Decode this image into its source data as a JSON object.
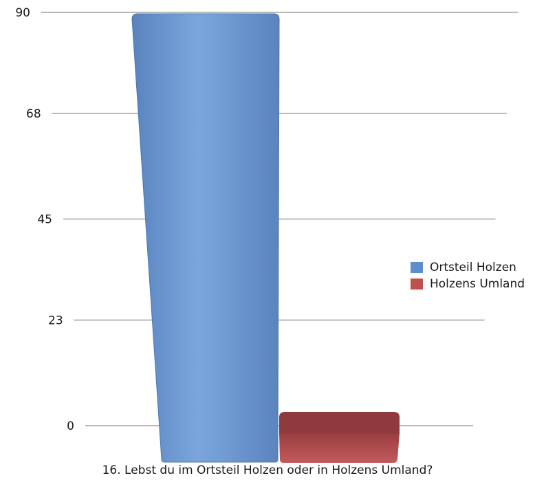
{
  "chart_data": {
    "type": "bar",
    "categories": [
      "16. Lebst du im Ortsteil Holzen oder in Holzens Umland?"
    ],
    "series": [
      {
        "name": "Ortsteil Holzen",
        "values": [
          90
        ],
        "color": "#6f98d1"
      },
      {
        "name": "Holzens Umland",
        "values": [
          3
        ],
        "color": "#b94f52"
      }
    ],
    "xlabel": "16. Lebst du im Ortsteil Holzen oder in Holzens Umland?",
    "ylabel": "",
    "ylim": [
      0,
      90
    ],
    "yticks": [
      "0",
      "23",
      "45",
      "68",
      "90"
    ],
    "grid": true,
    "legend_position": "right"
  }
}
